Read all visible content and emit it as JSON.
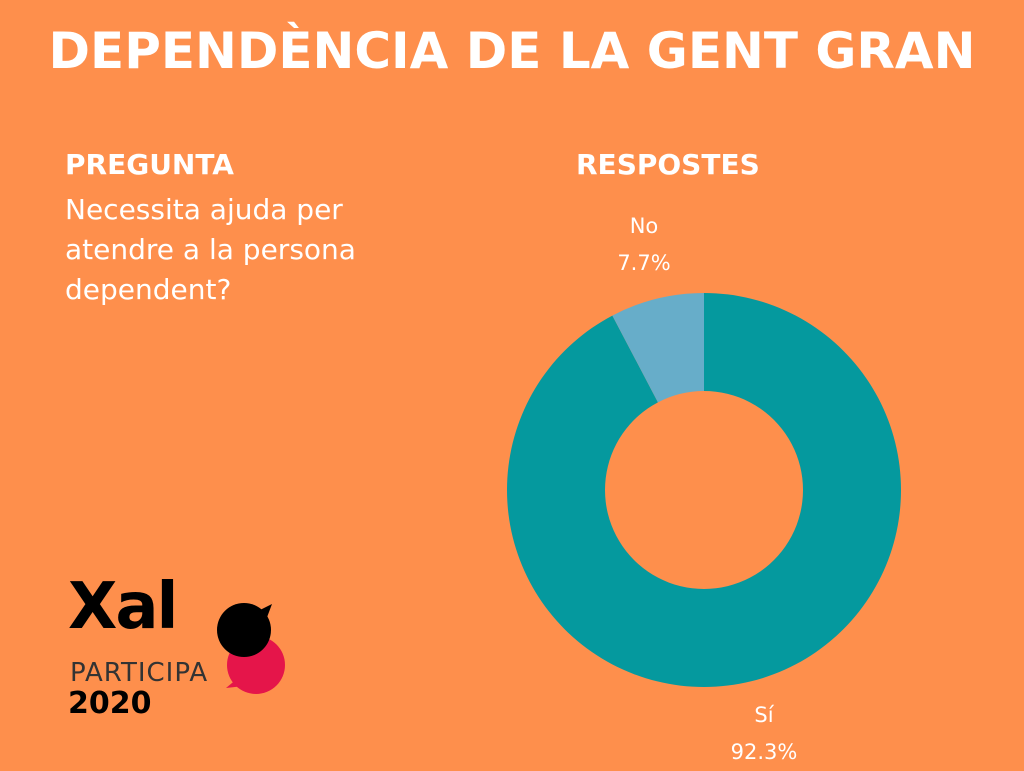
{
  "title": "DEPENDÈNCIA DE LA GENT GRAN",
  "question": {
    "heading": "PREGUNTA",
    "text": "Necessita ajuda per atendre a la persona dependent?"
  },
  "logo": {
    "name": "Xalo",
    "sub": "PARTICIPA",
    "year": "2020"
  },
  "chart_data": {
    "type": "pie",
    "title": "RESPOSTES",
    "donut": true,
    "slices": [
      {
        "label": "Sí",
        "value": 92.3,
        "display": "92.3%",
        "color": "#05999e"
      },
      {
        "label": "No",
        "value": 7.7,
        "display": "7.7%",
        "color": "#67adc9"
      }
    ]
  },
  "colors": {
    "background": "#fe8f4c"
  }
}
